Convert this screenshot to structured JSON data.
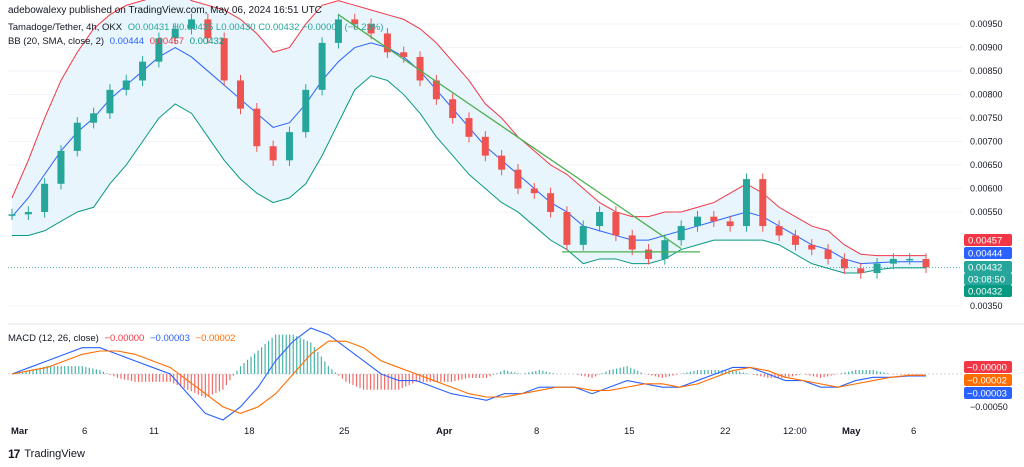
{
  "header": {
    "attribution": "adebowalexy published on TradingView.com, May 06, 2024 16:51 UTC"
  },
  "legend": {
    "symbol": "Tamadoge/Tether, 4h, OKX",
    "ohlc": "O0.00431 H0.00435 L0.00430 C0.00432 −0.00001 (−0.23%)",
    "bb_label": "BB (20, SMA, close, 2)",
    "bb_basis": "0.00444",
    "bb_upper": "0.00457",
    "bb_lower": "0.00432",
    "macd_label": "MACD (12, 26, close)",
    "macd_hist": "−0.00000",
    "macd_line": "−0.00003",
    "macd_signal": "−0.00002"
  },
  "footer": {
    "brand": "TradingView"
  },
  "colors": {
    "up": "#26a69a",
    "down": "#ef5350",
    "bb_basis": "#2962ff",
    "bb_upper": "#f23645",
    "bb_lower": "#089981",
    "bb_fill": "#e3f2fd",
    "macd": "#2962ff",
    "signal": "#ff6d00",
    "trendline": "#4caf50",
    "support": "#4caf50",
    "grid": "#f0f3fa",
    "axis_text": "#131722"
  },
  "chart_data": [
    {
      "type": "candlestick",
      "title": "Tamadoge/Tether, 4h, OKX",
      "x_ticks": [
        "Mar",
        "6",
        "11",
        "18",
        "25",
        "Apr",
        "8",
        "15",
        "22",
        "12:00",
        "May",
        "6"
      ],
      "y_ticks": [
        0.0095,
        0.009,
        0.0085,
        0.008,
        0.0075,
        0.007,
        0.0065,
        0.006,
        0.0055,
        0.0035
      ],
      "ylim": [
        0.0032,
        0.0098
      ],
      "price_labels": [
        {
          "text": "0.00457",
          "value": 0.00457,
          "color": "#f23645"
        },
        {
          "text": "0.00444",
          "value": 0.00444,
          "color": "#2962ff"
        },
        {
          "text": "0.00432",
          "value": 0.00432,
          "color": "#26a69a"
        },
        {
          "text": "03:08:50",
          "value": 0.00432,
          "color": "#26a69a"
        },
        {
          "text": "0.00432",
          "value": 0.00432,
          "color": "#089981"
        }
      ],
      "close_series": [
        0.00545,
        0.0055,
        0.0061,
        0.0068,
        0.0074,
        0.0076,
        0.0081,
        0.0083,
        0.0087,
        0.0092,
        0.0094,
        0.0096,
        0.0092,
        0.0083,
        0.0077,
        0.0069,
        0.0066,
        0.0072,
        0.0081,
        0.0091,
        0.0096,
        0.0095,
        0.0093,
        0.0089,
        0.0088,
        0.0083,
        0.0079,
        0.0075,
        0.0071,
        0.0067,
        0.0064,
        0.006,
        0.0059,
        0.0055,
        0.0048,
        0.0052,
        0.0055,
        0.005,
        0.0047,
        0.0045,
        0.0049,
        0.0052,
        0.0054,
        0.0053,
        0.0052,
        0.0062,
        0.0052,
        0.005,
        0.0048,
        0.0047,
        0.0045,
        0.0043,
        0.0042,
        0.0044,
        0.0045,
        0.0045,
        0.00432
      ],
      "support_level": 0.00465,
      "trendline": {
        "from": [
          20,
          0.0097
        ],
        "to": [
          41,
          0.00472
        ]
      },
      "bollinger": {
        "basis": [
          0.0054,
          0.0058,
          0.0063,
          0.0068,
          0.0072,
          0.0075,
          0.0079,
          0.0082,
          0.0085,
          0.0088,
          0.009,
          0.0088,
          0.0085,
          0.0082,
          0.0079,
          0.0076,
          0.0073,
          0.0074,
          0.0078,
          0.0083,
          0.0087,
          0.009,
          0.0091,
          0.009,
          0.0088,
          0.0085,
          0.0081,
          0.0077,
          0.0073,
          0.0069,
          0.0066,
          0.0063,
          0.006,
          0.0057,
          0.0055,
          0.0052,
          0.0051,
          0.005,
          0.0049,
          0.0049,
          0.005,
          0.0051,
          0.0052,
          0.0053,
          0.0054,
          0.0055,
          0.0054,
          0.0052,
          0.005,
          0.0048,
          0.0047,
          0.0045,
          0.0044,
          0.00442,
          0.00444,
          0.00444,
          0.00444
        ],
        "width": [
          0.0004,
          0.0008,
          0.0012,
          0.0015,
          0.0017,
          0.0019,
          0.0018,
          0.0017,
          0.0015,
          0.0013,
          0.0012,
          0.0012,
          0.0014,
          0.0016,
          0.0017,
          0.0017,
          0.0016,
          0.0016,
          0.0017,
          0.0016,
          0.0013,
          0.0009,
          0.0007,
          0.0007,
          0.0008,
          0.0009,
          0.001,
          0.001,
          0.001,
          0.0009,
          0.0009,
          0.0008,
          0.0008,
          0.0008,
          0.0008,
          0.0008,
          0.0006,
          0.0005,
          0.0005,
          0.0005,
          0.0005,
          0.0004,
          0.0004,
          0.0004,
          0.0005,
          0.0006,
          0.0005,
          0.0004,
          0.0004,
          0.0004,
          0.0004,
          0.0003,
          0.0002,
          0.00015,
          0.00013,
          0.00013,
          0.00013
        ]
      }
    },
    {
      "type": "macd",
      "title": "MACD (12, 26, close)",
      "y_ticks": [
        -0.0005
      ],
      "price_labels": [
        {
          "text": "−0.00000",
          "color": "#f23645"
        },
        {
          "text": "−0.00002",
          "color": "#ff6d00"
        },
        {
          "text": "−0.00003",
          "color": "#2962ff"
        }
      ],
      "macd": [
        0.0,
        0.0001,
        0.0002,
        0.0003,
        0.0004,
        0.0004,
        0.0003,
        0.0002,
        0.0001,
        0.0,
        -0.0003,
        -0.0006,
        -0.0007,
        -0.0005,
        -0.0002,
        0.0002,
        0.0005,
        0.0007,
        0.0006,
        0.0004,
        0.0002,
        0.0,
        -0.0001,
        -0.0001,
        -0.0002,
        -0.0003,
        -0.00035,
        -0.0004,
        -0.0003,
        -0.0003,
        -0.0002,
        -0.0002,
        -0.0002,
        -0.0003,
        -0.0002,
        -0.0001,
        -0.00015,
        -0.0002,
        -0.0002,
        -0.0001,
        0.0,
        0.0001,
        0.0001,
        0.0,
        -0.0001,
        -0.0001,
        -0.0002,
        -0.0002,
        -0.0001,
        -5e-05,
        -5e-05,
        -3e-05,
        -3e-05
      ],
      "signal": [
        0.0,
        5e-05,
        0.0001,
        0.0002,
        0.0003,
        0.00035,
        0.00035,
        0.0003,
        0.0002,
        0.0001,
        -0.0001,
        -0.0003,
        -0.0005,
        -0.0006,
        -0.0005,
        -0.0003,
        0.0,
        0.0003,
        0.0005,
        0.0005,
        0.0004,
        0.0002,
        0.0001,
        0.0,
        -0.0001,
        -0.0002,
        -0.0003,
        -0.00035,
        -0.00035,
        -0.0003,
        -0.00025,
        -0.0002,
        -0.0002,
        -0.00025,
        -0.00025,
        -0.0002,
        -0.00015,
        -0.00015,
        -0.0002,
        -0.00015,
        -5e-05,
        5e-05,
        0.0001,
        5e-05,
        -5e-05,
        -0.0001,
        -0.00015,
        -0.0002,
        -0.00015,
        -0.0001,
        -5e-05,
        -2e-05,
        -2e-05
      ]
    }
  ]
}
